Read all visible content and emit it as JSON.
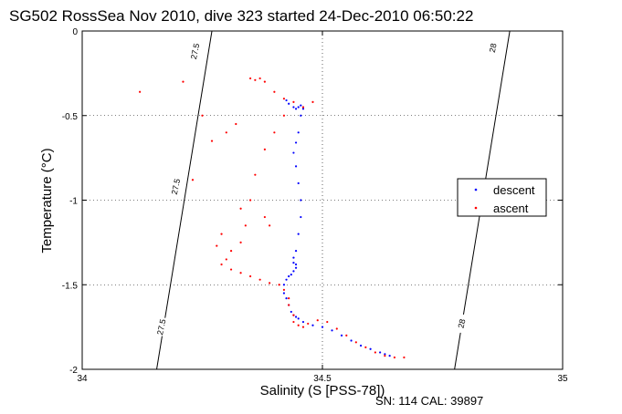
{
  "chart_data": {
    "type": "scatter",
    "title": "SG502 RossSea Nov 2010, dive 323 started 24-Dec-2010 06:50:22",
    "xlabel": "Salinity (S [PSS-78])",
    "ylabel": "Temperature (°C)",
    "xlim": [
      34,
      35
    ],
    "ylim": [
      -2,
      0
    ],
    "x_ticks": [
      "34",
      "34.5",
      "35"
    ],
    "y_ticks": [
      "-2",
      "-1.5",
      "-1",
      "-0.5",
      "0"
    ],
    "grid": "dotted",
    "legend_position": "right",
    "footer": "SN: 114  CAL: 39897",
    "density_contours": [
      {
        "label": "27.5",
        "points": [
          [
            34.155,
            -2.0
          ],
          [
            34.27,
            0.0
          ]
        ]
      },
      {
        "label": "28",
        "points": [
          [
            34.775,
            -2.0
          ],
          [
            34.89,
            0.0
          ]
        ]
      }
    ],
    "contour_labels": [
      {
        "text": "27.5",
        "x": 34.235,
        "y": -0.12
      },
      {
        "text": "27.5",
        "x": 34.195,
        "y": -0.92
      },
      {
        "text": "27.5",
        "x": 34.165,
        "y": -1.75
      },
      {
        "text": "28",
        "x": 34.855,
        "y": -0.1
      },
      {
        "text": "28",
        "x": 34.79,
        "y": -1.73
      }
    ],
    "series": [
      {
        "name": "descent",
        "color": "#0000ff",
        "marker": "point",
        "x": [
          34.425,
          34.43,
          34.44,
          34.445,
          34.45,
          34.455,
          34.46,
          34.455,
          34.45,
          34.445,
          34.44,
          34.445,
          34.45,
          34.455,
          34.455,
          34.45,
          34.445,
          34.44,
          34.44,
          34.445,
          34.445,
          34.44,
          34.435,
          34.43,
          34.425,
          34.42,
          34.42,
          34.425,
          34.43,
          34.435,
          34.44,
          34.445,
          34.45,
          34.46,
          34.48,
          34.5,
          34.52,
          34.54,
          34.56,
          34.58,
          34.6,
          34.62,
          34.63,
          34.64
        ],
        "y": [
          -0.41,
          -0.43,
          -0.45,
          -0.46,
          -0.45,
          -0.44,
          -0.46,
          -0.5,
          -0.6,
          -0.66,
          -0.72,
          -0.8,
          -0.9,
          -1.0,
          -1.1,
          -1.2,
          -1.3,
          -1.34,
          -1.37,
          -1.38,
          -1.4,
          -1.42,
          -1.44,
          -1.45,
          -1.47,
          -1.5,
          -1.55,
          -1.58,
          -1.62,
          -1.66,
          -1.68,
          -1.69,
          -1.7,
          -1.72,
          -1.74,
          -1.75,
          -1.77,
          -1.8,
          -1.83,
          -1.86,
          -1.88,
          -1.9,
          -1.91,
          -1.92
        ]
      },
      {
        "name": "ascent",
        "color": "#ff0000",
        "marker": "point",
        "x": [
          34.35,
          34.36,
          34.37,
          34.38,
          34.4,
          34.42,
          34.32,
          34.3,
          34.25,
          34.21,
          34.12,
          34.46,
          34.44,
          34.42,
          34.4,
          34.38,
          34.36,
          34.35,
          34.33,
          34.34,
          34.33,
          34.31,
          34.3,
          34.29,
          34.31,
          34.33,
          34.35,
          34.37,
          34.39,
          34.41,
          34.42,
          34.43,
          34.43,
          34.44,
          34.44,
          34.45,
          34.46,
          34.47,
          34.49,
          34.51,
          34.53,
          34.55,
          34.57,
          34.59,
          34.61,
          34.63,
          34.65,
          34.67,
          34.29,
          34.28,
          34.38,
          34.39,
          34.23,
          34.27,
          34.48
        ],
        "y": [
          -0.28,
          -0.29,
          -0.28,
          -0.3,
          -0.36,
          -0.4,
          -0.55,
          -0.6,
          -0.5,
          -0.3,
          -0.36,
          -0.45,
          -0.42,
          -0.5,
          -0.6,
          -0.7,
          -0.85,
          -1.0,
          -1.05,
          -1.15,
          -1.25,
          -1.3,
          -1.35,
          -1.38,
          -1.41,
          -1.43,
          -1.45,
          -1.47,
          -1.49,
          -1.5,
          -1.53,
          -1.58,
          -1.62,
          -1.68,
          -1.72,
          -1.74,
          -1.75,
          -1.73,
          -1.71,
          -1.72,
          -1.76,
          -1.8,
          -1.84,
          -1.87,
          -1.9,
          -1.92,
          -1.93,
          -1.93,
          -1.2,
          -1.27,
          -1.1,
          -1.15,
          -0.88,
          -0.65,
          -0.42
        ]
      }
    ]
  }
}
